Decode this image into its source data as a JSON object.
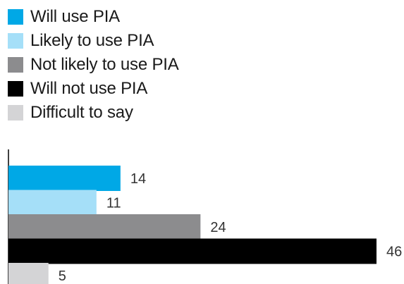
{
  "chart_data": {
    "type": "bar",
    "orientation": "horizontal",
    "categories": [
      "Will use PIA",
      "Likely to use PIA",
      "Not likely to use PIA",
      "Will not use PIA",
      "Difficult to say"
    ],
    "values": [
      14,
      11,
      24,
      46,
      5
    ],
    "value_labels": [
      "14",
      "11",
      "24",
      "46",
      "5"
    ],
    "colors": [
      "#00a8e6",
      "#a5dff8",
      "#8c8c8e",
      "#000000",
      "#d4d4d6"
    ],
    "xlim": [
      0,
      46
    ],
    "legend_position": "top-left",
    "grid": false,
    "title": "",
    "xlabel": "",
    "ylabel": ""
  }
}
